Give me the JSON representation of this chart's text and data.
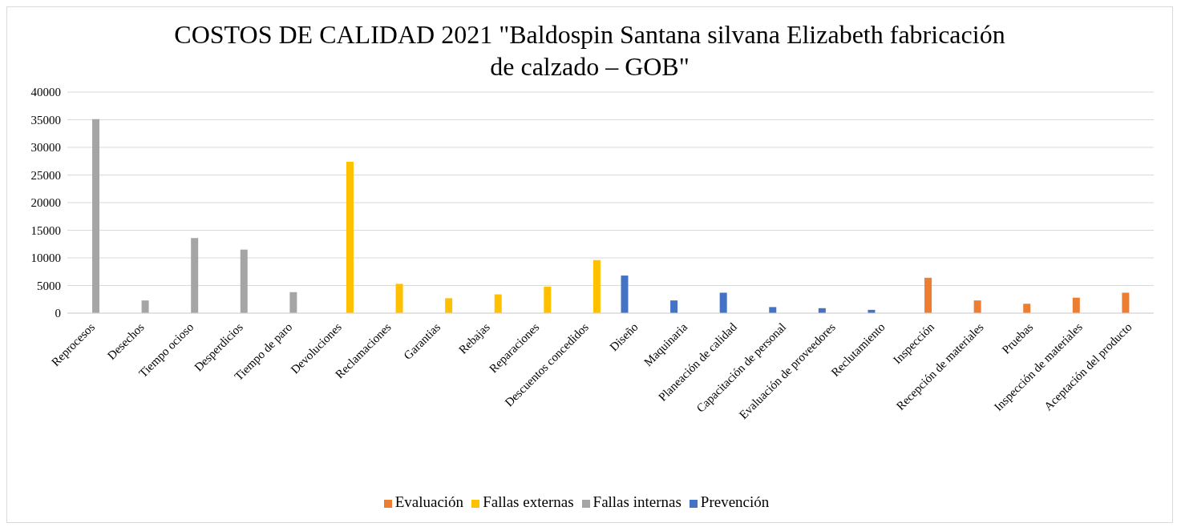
{
  "chart_data": {
    "type": "bar",
    "title": "COSTOS DE CALIDAD 2021 \"Baldospin Santana silvana Elizabeth fabricación de calzado – GOB\"",
    "categories": [
      "Reprocesos",
      "Desechos",
      "Tiempo ocioso",
      "Desperdicios",
      "Tiempo de paro",
      "Devoluciones",
      "Reclamaciones",
      "Garantias",
      "Rebajas",
      "Reparaciones",
      "Descuentos concedidos",
      "Diseño",
      "Maquinaria",
      "Planeación de calidad",
      "Capacitación de personal",
      "Evaluación de proveedores",
      "Reclutamiento",
      "Inspección",
      "Recepción de materiales",
      "Pruebas",
      "Inspección de materiales",
      "Aceptación del producto"
    ],
    "series": [
      {
        "name": "Prevención",
        "color": "#4472c4",
        "values": [
          null,
          null,
          null,
          null,
          null,
          null,
          null,
          null,
          null,
          null,
          null,
          6800,
          2300,
          3700,
          1100,
          900,
          600,
          null,
          null,
          null,
          null,
          null
        ]
      },
      {
        "name": "Evaluación",
        "color": "#ed7d31",
        "values": [
          null,
          null,
          null,
          null,
          null,
          null,
          null,
          null,
          null,
          null,
          null,
          null,
          null,
          null,
          null,
          null,
          null,
          6400,
          2300,
          1700,
          2800,
          3700
        ]
      },
      {
        "name": "Fallas internas",
        "color": "#a5a5a5",
        "values": [
          35100,
          2300,
          13600,
          11500,
          3800,
          null,
          null,
          null,
          null,
          null,
          null,
          null,
          null,
          null,
          null,
          null,
          null,
          null,
          null,
          null,
          null,
          null
        ]
      },
      {
        "name": "Fallas externas",
        "color": "#ffc000",
        "values": [
          null,
          null,
          null,
          null,
          null,
          27400,
          5300,
          2700,
          3400,
          4800,
          9600,
          null,
          null,
          null,
          null,
          null,
          null,
          null,
          null,
          null,
          null,
          null
        ]
      }
    ],
    "ylim": [
      0,
      40000
    ],
    "yticks": [
      0,
      5000,
      10000,
      15000,
      20000,
      25000,
      30000,
      35000,
      40000
    ],
    "grid": "y",
    "legend": "bottom"
  }
}
